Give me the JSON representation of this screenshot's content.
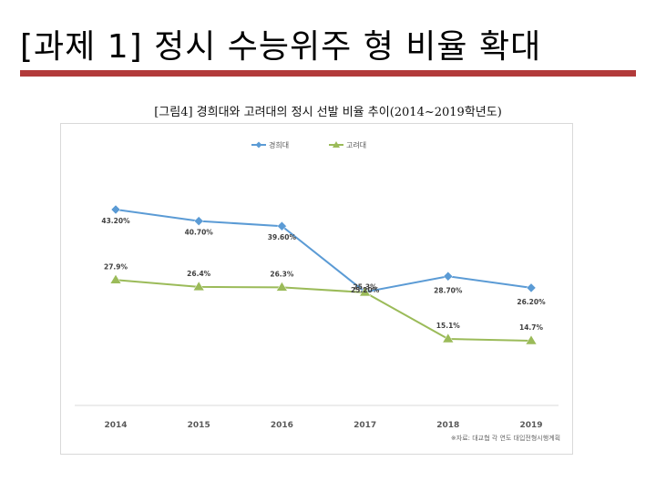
{
  "slide": {
    "title": "[과제 1] 정시 수능위주 형 비율 확대",
    "accent_color": "#b23a3a"
  },
  "figure": {
    "caption": "[그림4] 경희대와 고려대의 정시 선발 비율 추이(2014~2019학년도)",
    "source_note": "※자료: 대교협 각 연도 대입전형시행계획"
  },
  "chart_data": {
    "type": "line",
    "title": "",
    "xlabel": "",
    "ylabel": "",
    "categories": [
      "2014",
      "2015",
      "2016",
      "2017",
      "2018",
      "2019"
    ],
    "series": [
      {
        "name": "경희대",
        "values": [
          43.2,
          40.7,
          39.6,
          25.3,
          28.7,
          26.2
        ],
        "labels": [
          "43.20%",
          "40.70%",
          "39.60%",
          "25.3%",
          "28.70%",
          "26.20%"
        ],
        "color": "#5b9bd5",
        "marker": "diamond"
      },
      {
        "name": "고려대",
        "values": [
          27.9,
          26.4,
          26.3,
          25.2,
          15.1,
          14.7
        ],
        "labels": [
          "27.9%",
          "26.4%",
          "26.3%",
          "25.20%",
          "15.1%",
          "14.7%"
        ],
        "color": "#9bbb59",
        "marker": "triangle"
      }
    ],
    "legend_position": "top-center",
    "grid": false,
    "ylim": [
      0,
      50
    ]
  }
}
